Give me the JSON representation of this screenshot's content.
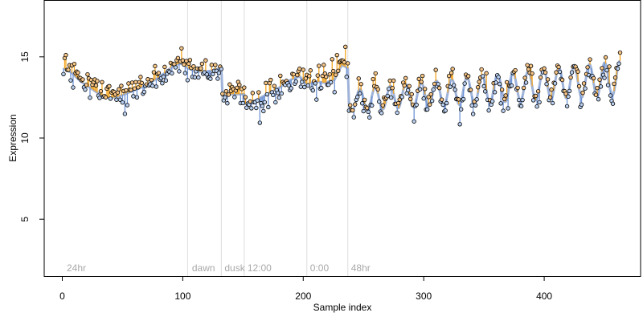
{
  "chart_data": {
    "type": "scatter",
    "title": "",
    "xlabel": "Sample index",
    "ylabel": "Expression",
    "xlim": [
      -15,
      480
    ],
    "ylim": [
      1.5,
      18.5
    ],
    "xticks": [
      0,
      100,
      200,
      300,
      400
    ],
    "yticks": [
      5,
      10,
      15
    ],
    "grid": false,
    "phase_boundaries": [
      104,
      132,
      151,
      203,
      237
    ],
    "phase_labels": [
      {
        "text": "24hr",
        "x": 3
      },
      {
        "text": "dawn",
        "x": 107
      },
      {
        "text": "dusk",
        "x": 134
      },
      {
        "text": "12:00",
        "x": 153
      },
      {
        "text": "0:00",
        "x": 205
      },
      {
        "text": "48hr",
        "x": 239
      }
    ],
    "colors": {
      "fit_line": "#9fb3d9",
      "residual_positive": "#f5a623",
      "residual_negative": "#6f94d6",
      "point_stroke": "#000000",
      "point_fill_high": "#f5c486",
      "point_fill_low": "#b9cff0",
      "phase_line": "#dddddd",
      "phase_text": "#a9a9a9"
    },
    "fit_knots": [
      {
        "x": 1,
        "y": 14.3
      },
      {
        "x": 8,
        "y": 14.0
      },
      {
        "x": 15,
        "y": 13.5
      },
      {
        "x": 25,
        "y": 13.0
      },
      {
        "x": 35,
        "y": 12.5
      },
      {
        "x": 45,
        "y": 12.5
      },
      {
        "x": 55,
        "y": 12.8
      },
      {
        "x": 65,
        "y": 13.1
      },
      {
        "x": 75,
        "y": 13.5
      },
      {
        "x": 85,
        "y": 14.0
      },
      {
        "x": 93,
        "y": 14.5
      },
      {
        "x": 100,
        "y": 14.6
      },
      {
        "x": 104,
        "y": 14.3
      },
      {
        "x": 112,
        "y": 14.1
      },
      {
        "x": 120,
        "y": 14.1
      },
      {
        "x": 128,
        "y": 14.2
      },
      {
        "x": 132,
        "y": 14.4
      },
      {
        "x": 133,
        "y": 12.6
      },
      {
        "x": 140,
        "y": 12.7
      },
      {
        "x": 151,
        "y": 12.7
      },
      {
        "x": 152,
        "y": 12.1
      },
      {
        "x": 160,
        "y": 12.3
      },
      {
        "x": 170,
        "y": 12.7
      },
      {
        "x": 180,
        "y": 13.1
      },
      {
        "x": 190,
        "y": 13.6
      },
      {
        "x": 197,
        "y": 13.8
      },
      {
        "x": 203,
        "y": 13.3
      },
      {
        "x": 210,
        "y": 13.5
      },
      {
        "x": 218,
        "y": 13.4
      },
      {
        "x": 226,
        "y": 13.6
      },
      {
        "x": 232,
        "y": 14.5
      },
      {
        "x": 237,
        "y": 14.3
      },
      {
        "x": 238,
        "y": 12.0
      }
    ],
    "oscillation": {
      "x_start": 238,
      "x_end": 463,
      "period": 12.7,
      "center_start": 12.3,
      "center_end": 13.7,
      "amp_start": 0.65,
      "amp_end": 1.05,
      "phase_x": 247
    },
    "noise_sd": 0.42,
    "n_points": 463
  }
}
